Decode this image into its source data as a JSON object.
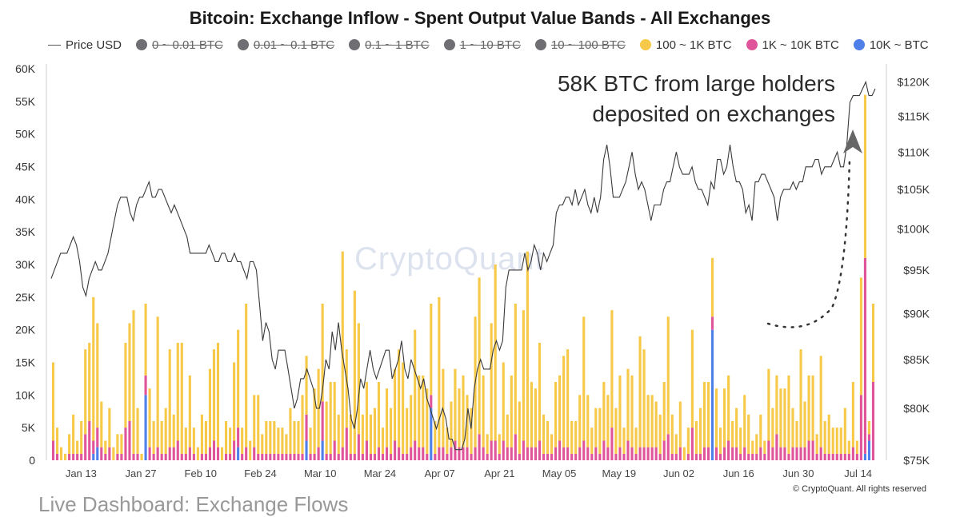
{
  "title": "Bitcoin: Exchange Inflow - Spent Output Value Bands - All Exchanges",
  "legend": [
    {
      "label": "Price USD",
      "kind": "line",
      "color": "#555555",
      "enabled": true
    },
    {
      "label": "0 ~ 0.01 BTC",
      "kind": "dot",
      "color": "#6e6e73",
      "enabled": false
    },
    {
      "label": "0.01 ~ 0.1 BTC",
      "kind": "dot",
      "color": "#6e6e73",
      "enabled": false
    },
    {
      "label": "0.1 ~ 1 BTC",
      "kind": "dot",
      "color": "#6e6e73",
      "enabled": false
    },
    {
      "label": "1 ~ 10 BTC",
      "kind": "dot",
      "color": "#6e6e73",
      "enabled": false
    },
    {
      "label": "10 ~ 100 BTC",
      "kind": "dot",
      "color": "#6e6e73",
      "enabled": false
    },
    {
      "label": "100 ~ 1K BTC",
      "kind": "dot",
      "color": "#f7c948",
      "enabled": true
    },
    {
      "label": "1K ~ 10K BTC",
      "kind": "dot",
      "color": "#e0559a",
      "enabled": true
    },
    {
      "label": "10K ~ BTC",
      "kind": "dot",
      "color": "#4f7fe8",
      "enabled": true
    }
  ],
  "annotation": {
    "line1": "58K BTC from large holders",
    "line2": "deposited on exchanges"
  },
  "watermark": "CryptoQuant",
  "copyright": "© CryptoQuant. All rights reserved",
  "footer_text": "Live Dashboard: Exchange Flows",
  "chart_data": {
    "type": "bar",
    "stacked": true,
    "x_tick_labels": [
      "Jan 13",
      "Jan 27",
      "Feb 10",
      "Feb 24",
      "Mar 10",
      "Mar 24",
      "Apr 07",
      "Apr 21",
      "May 05",
      "May 19",
      "Jun 02",
      "Jun 16",
      "Jun 30",
      "Jul 14"
    ],
    "y_left": {
      "ticks": [
        "0",
        "5K",
        "10K",
        "15K",
        "20K",
        "25K",
        "30K",
        "35K",
        "40K",
        "45K",
        "50K",
        "55K",
        "60K"
      ],
      "min": 0,
      "max": 60000
    },
    "y_right": {
      "ticks": [
        "$75K",
        "$80K",
        "$85K",
        "$90K",
        "$95K",
        "$100K",
        "$105K",
        "$110K",
        "$115K",
        "$120K"
      ],
      "min": 75000,
      "max": 122000,
      "scale": "log"
    },
    "grid": false,
    "legend_placement": "top",
    "x_start": "2025-01-06",
    "x_end": "2025-07-18",
    "series": [
      {
        "name": "100 ~ 1K BTC",
        "color": "#f7c948",
        "values": [
          12,
          4,
          2,
          1,
          3,
          6,
          2,
          5,
          13,
          12,
          22,
          16,
          7,
          2,
          6,
          2,
          3,
          3,
          13,
          15,
          22,
          7,
          1,
          11,
          9,
          5,
          20,
          5,
          7,
          15,
          5,
          15,
          17,
          4,
          11,
          4,
          2,
          6,
          5,
          12,
          14,
          16,
          2,
          5,
          4,
          12,
          15,
          4,
          22,
          3,
          8,
          9,
          3,
          5,
          5,
          5,
          4,
          4,
          3,
          7,
          5,
          5,
          9,
          9,
          4,
          10,
          12,
          15,
          8,
          11,
          9,
          6,
          30,
          12,
          6,
          25,
          17,
          6,
          9,
          6,
          7,
          10,
          4,
          9,
          7,
          11,
          15,
          14,
          7,
          8,
          17,
          11,
          11,
          10,
          14,
          5,
          23,
          12,
          4,
          7,
          11,
          9,
          11,
          8,
          7,
          20,
          24,
          11,
          3,
          18,
          27,
          3,
          12,
          5,
          11,
          20,
          8,
          20,
          30,
          10,
          9,
          15,
          6,
          5,
          3,
          10,
          10,
          14,
          15,
          5,
          5,
          8,
          19,
          8,
          4,
          6,
          7,
          9,
          8,
          18,
          7,
          11,
          4,
          11,
          11,
          4,
          17,
          15,
          8,
          8,
          7,
          6,
          9,
          18,
          6,
          3,
          7,
          2,
          4,
          15,
          5,
          7,
          10,
          10,
          9,
          9,
          4,
          9,
          10,
          4,
          6,
          4,
          8,
          6,
          2,
          3,
          5,
          2,
          11,
          6,
          9,
          9,
          9,
          12,
          6,
          4,
          15,
          7,
          10,
          10,
          3,
          14,
          5,
          6,
          4,
          4,
          4,
          7,
          2,
          10,
          2,
          18,
          25,
          2,
          12
        ]
      },
      {
        "name": "1K ~ 10K BTC",
        "color": "#e0559a",
        "values": [
          3,
          1,
          0,
          0,
          1,
          1,
          1,
          1,
          4,
          6,
          2,
          3,
          2,
          1,
          2,
          0,
          1,
          1,
          5,
          6,
          1,
          1,
          0,
          3,
          2,
          1,
          2,
          1,
          1,
          2,
          2,
          3,
          1,
          1,
          2,
          1,
          0,
          1,
          1,
          2,
          3,
          2,
          0,
          1,
          1,
          3,
          3,
          1,
          2,
          0,
          2,
          1,
          1,
          1,
          1,
          1,
          1,
          1,
          1,
          1,
          1,
          1,
          1,
          4,
          1,
          1,
          2,
          6,
          1,
          1,
          3,
          1,
          2,
          5,
          1,
          1,
          4,
          1,
          3,
          1,
          1,
          2,
          1,
          2,
          1,
          3,
          2,
          1,
          1,
          2,
          3,
          2,
          2,
          1,
          2,
          1,
          2,
          2,
          1,
          2,
          3,
          2,
          2,
          2,
          1,
          2,
          4,
          2,
          1,
          3,
          3,
          1,
          3,
          2,
          2,
          4,
          1,
          3,
          2,
          2,
          2,
          3,
          1,
          1,
          1,
          2,
          3,
          2,
          2,
          1,
          1,
          2,
          3,
          2,
          1,
          2,
          1,
          3,
          2,
          5,
          1,
          2,
          1,
          3,
          2,
          1,
          2,
          2,
          2,
          2,
          2,
          1,
          3,
          4,
          1,
          1,
          2,
          0,
          1,
          5,
          1,
          1,
          2,
          2,
          2,
          2,
          1,
          2,
          3,
          2,
          2,
          1,
          2,
          1,
          1,
          1,
          2,
          1,
          3,
          2,
          4,
          2,
          2,
          1,
          2,
          2,
          2,
          2,
          3,
          3,
          1,
          2,
          1,
          1,
          1,
          1,
          1,
          1,
          1,
          2,
          1,
          10,
          30,
          1,
          12
        ]
      },
      {
        "name": "10K ~ BTC",
        "color": "#4f7fe8",
        "values": [
          0,
          0,
          0,
          0,
          0,
          0,
          0,
          0,
          0,
          0,
          1,
          2,
          0,
          0,
          0,
          0,
          0,
          0,
          0,
          0,
          0,
          0,
          0,
          10,
          0,
          0,
          0,
          0,
          0,
          0,
          0,
          0,
          0,
          0,
          0,
          0,
          0,
          0,
          0,
          0,
          0,
          0,
          0,
          0,
          0,
          0,
          2,
          0,
          0,
          0,
          0,
          0,
          0,
          0,
          0,
          0,
          0,
          0,
          0,
          0,
          0,
          0,
          0,
          3,
          0,
          0,
          0,
          3,
          0,
          0,
          0,
          0,
          0,
          0,
          0,
          0,
          0,
          0,
          0,
          0,
          0,
          0,
          0,
          0,
          0,
          0,
          0,
          0,
          0,
          0,
          0,
          0,
          0,
          0,
          8,
          0,
          0,
          0,
          0,
          0,
          0,
          0,
          0,
          0,
          0,
          0,
          0,
          0,
          0,
          0,
          0,
          0,
          0,
          0,
          0,
          0,
          0,
          0,
          0,
          0,
          0,
          0,
          0,
          0,
          0,
          0,
          0,
          0,
          0,
          0,
          0,
          0,
          0,
          0,
          0,
          0,
          0,
          0,
          0,
          0,
          0,
          0,
          0,
          0,
          0,
          0,
          0,
          0,
          0,
          0,
          0,
          0,
          0,
          0,
          0,
          0,
          0,
          0,
          0,
          0,
          0,
          0,
          0,
          0,
          20,
          0,
          0,
          0,
          0,
          0,
          0,
          0,
          0,
          0,
          0,
          0,
          0,
          0,
          0,
          0,
          0,
          0,
          0,
          0,
          0,
          0,
          0,
          0,
          0,
          0,
          0,
          0,
          0,
          0,
          0,
          0,
          0,
          0,
          0,
          0,
          0,
          0,
          1,
          3,
          0
        ]
      },
      {
        "name": "Price USD",
        "color": "#555555",
        "axis": "right",
        "values": [
          94,
          95,
          96,
          97,
          97,
          97,
          98,
          99,
          98,
          96,
          93,
          92,
          94,
          95,
          96,
          95,
          95,
          96,
          97,
          99,
          101,
          103,
          104,
          104,
          104,
          102,
          101,
          103,
          104,
          104,
          105,
          106,
          104,
          104,
          105,
          105,
          104,
          103,
          102,
          103,
          102,
          101,
          100,
          99,
          97,
          97,
          97,
          97,
          97,
          97,
          98,
          97,
          96,
          96,
          97,
          97,
          96,
          96,
          97,
          96,
          96,
          95,
          94,
          96,
          96,
          95,
          91,
          87,
          89,
          88,
          85,
          84,
          86,
          86,
          86,
          84,
          82,
          80,
          81,
          83,
          83,
          84,
          83,
          82,
          80,
          80,
          82,
          85,
          84,
          88,
          86,
          89,
          86,
          84,
          82,
          79,
          78,
          80,
          83,
          82,
          84,
          86,
          84,
          83,
          84,
          85,
          86,
          86,
          83,
          84,
          85,
          87,
          84,
          83,
          85,
          84,
          83,
          82,
          83,
          81,
          80,
          79,
          78,
          79,
          80,
          79,
          77,
          77,
          76,
          76,
          76,
          77,
          80,
          78,
          82,
          84,
          85,
          84,
          84,
          84,
          86,
          87,
          86,
          87,
          93,
          95,
          95,
          95,
          95,
          95,
          97,
          95,
          96,
          98,
          97,
          95,
          97,
          96,
          97,
          98,
          102,
          103,
          103,
          104,
          104,
          103,
          105,
          103,
          104,
          105,
          103,
          102,
          104,
          102,
          104,
          109,
          111,
          108,
          104,
          104,
          104,
          105,
          106,
          108,
          110,
          107,
          105,
          106,
          105,
          103,
          101,
          103,
          103,
          103,
          105,
          106,
          106,
          108,
          110,
          108,
          107,
          107,
          107,
          108,
          106,
          105,
          105,
          104,
          103,
          106,
          105,
          109,
          109,
          107,
          108,
          111,
          108,
          106,
          106,
          105,
          102,
          103,
          101,
          106,
          106,
          107,
          107,
          106,
          105,
          104,
          101,
          104,
          105,
          105,
          105,
          106,
          105,
          106,
          106,
          108,
          108,
          108,
          109,
          109,
          107,
          108,
          108,
          108,
          109,
          110,
          108,
          108,
          111,
          117,
          118,
          118,
          118,
          119,
          120,
          118,
          118,
          119
        ]
      }
    ]
  }
}
